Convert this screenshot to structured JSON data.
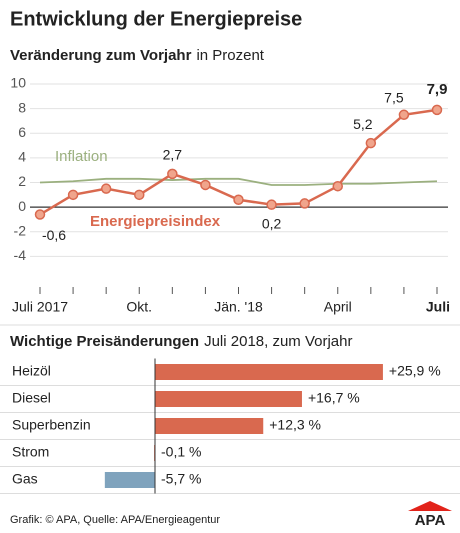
{
  "title": "Entwicklung der Energiepreise",
  "chart_data": [
    {
      "type": "line",
      "title": "Veränderung zum Vorjahr",
      "subtitle": "in Prozent",
      "categories": [
        "Juli 2017",
        null,
        null,
        "Okt.",
        null,
        null,
        "Jän. '18",
        null,
        null,
        "April",
        null,
        null,
        "Juli"
      ],
      "series": [
        {
          "name": "Inflation",
          "color": "#9bb07f",
          "values": [
            2.0,
            2.1,
            2.3,
            2.3,
            2.2,
            2.3,
            2.3,
            1.8,
            1.8,
            1.9,
            1.9,
            2.0,
            2.1
          ]
        },
        {
          "name": "Energiepreisindex",
          "color": "#d9694f",
          "markers": true,
          "values": [
            -0.6,
            1.0,
            1.5,
            1.0,
            2.7,
            1.8,
            0.6,
            0.2,
            0.3,
            1.7,
            5.2,
            7.5,
            7.9
          ],
          "value_labels": [
            "-0,6",
            null,
            null,
            null,
            "2,7",
            null,
            null,
            "0,2",
            null,
            null,
            "5,2",
            "7,5",
            "7,9"
          ]
        }
      ],
      "ylim": [
        -6,
        10
      ],
      "yticks": [
        -4,
        -2,
        0,
        2,
        4,
        6,
        8,
        10
      ],
      "grid": true
    },
    {
      "type": "bar",
      "orientation": "horizontal",
      "title": "Wichtige Preisänderungen",
      "subtitle": "Juli 2018, zum Vorjahr",
      "categories": [
        "Heizöl",
        "Diesel",
        "Superbenzin",
        "Strom",
        "Gas"
      ],
      "values": [
        25.9,
        16.7,
        12.3,
        -0.1,
        -5.7
      ],
      "value_labels": [
        "+25,9 %",
        "+16,7 %",
        "+12,3 %",
        "-0,1 %",
        "-5,7 %"
      ],
      "colors": [
        "#d9694f",
        "#d9694f",
        "#d9694f",
        "#d9694f",
        "#7fa3bd"
      ]
    }
  ],
  "source": "Grafik: © APA, Quelle: APA/Energieagentur",
  "logo": "APA"
}
